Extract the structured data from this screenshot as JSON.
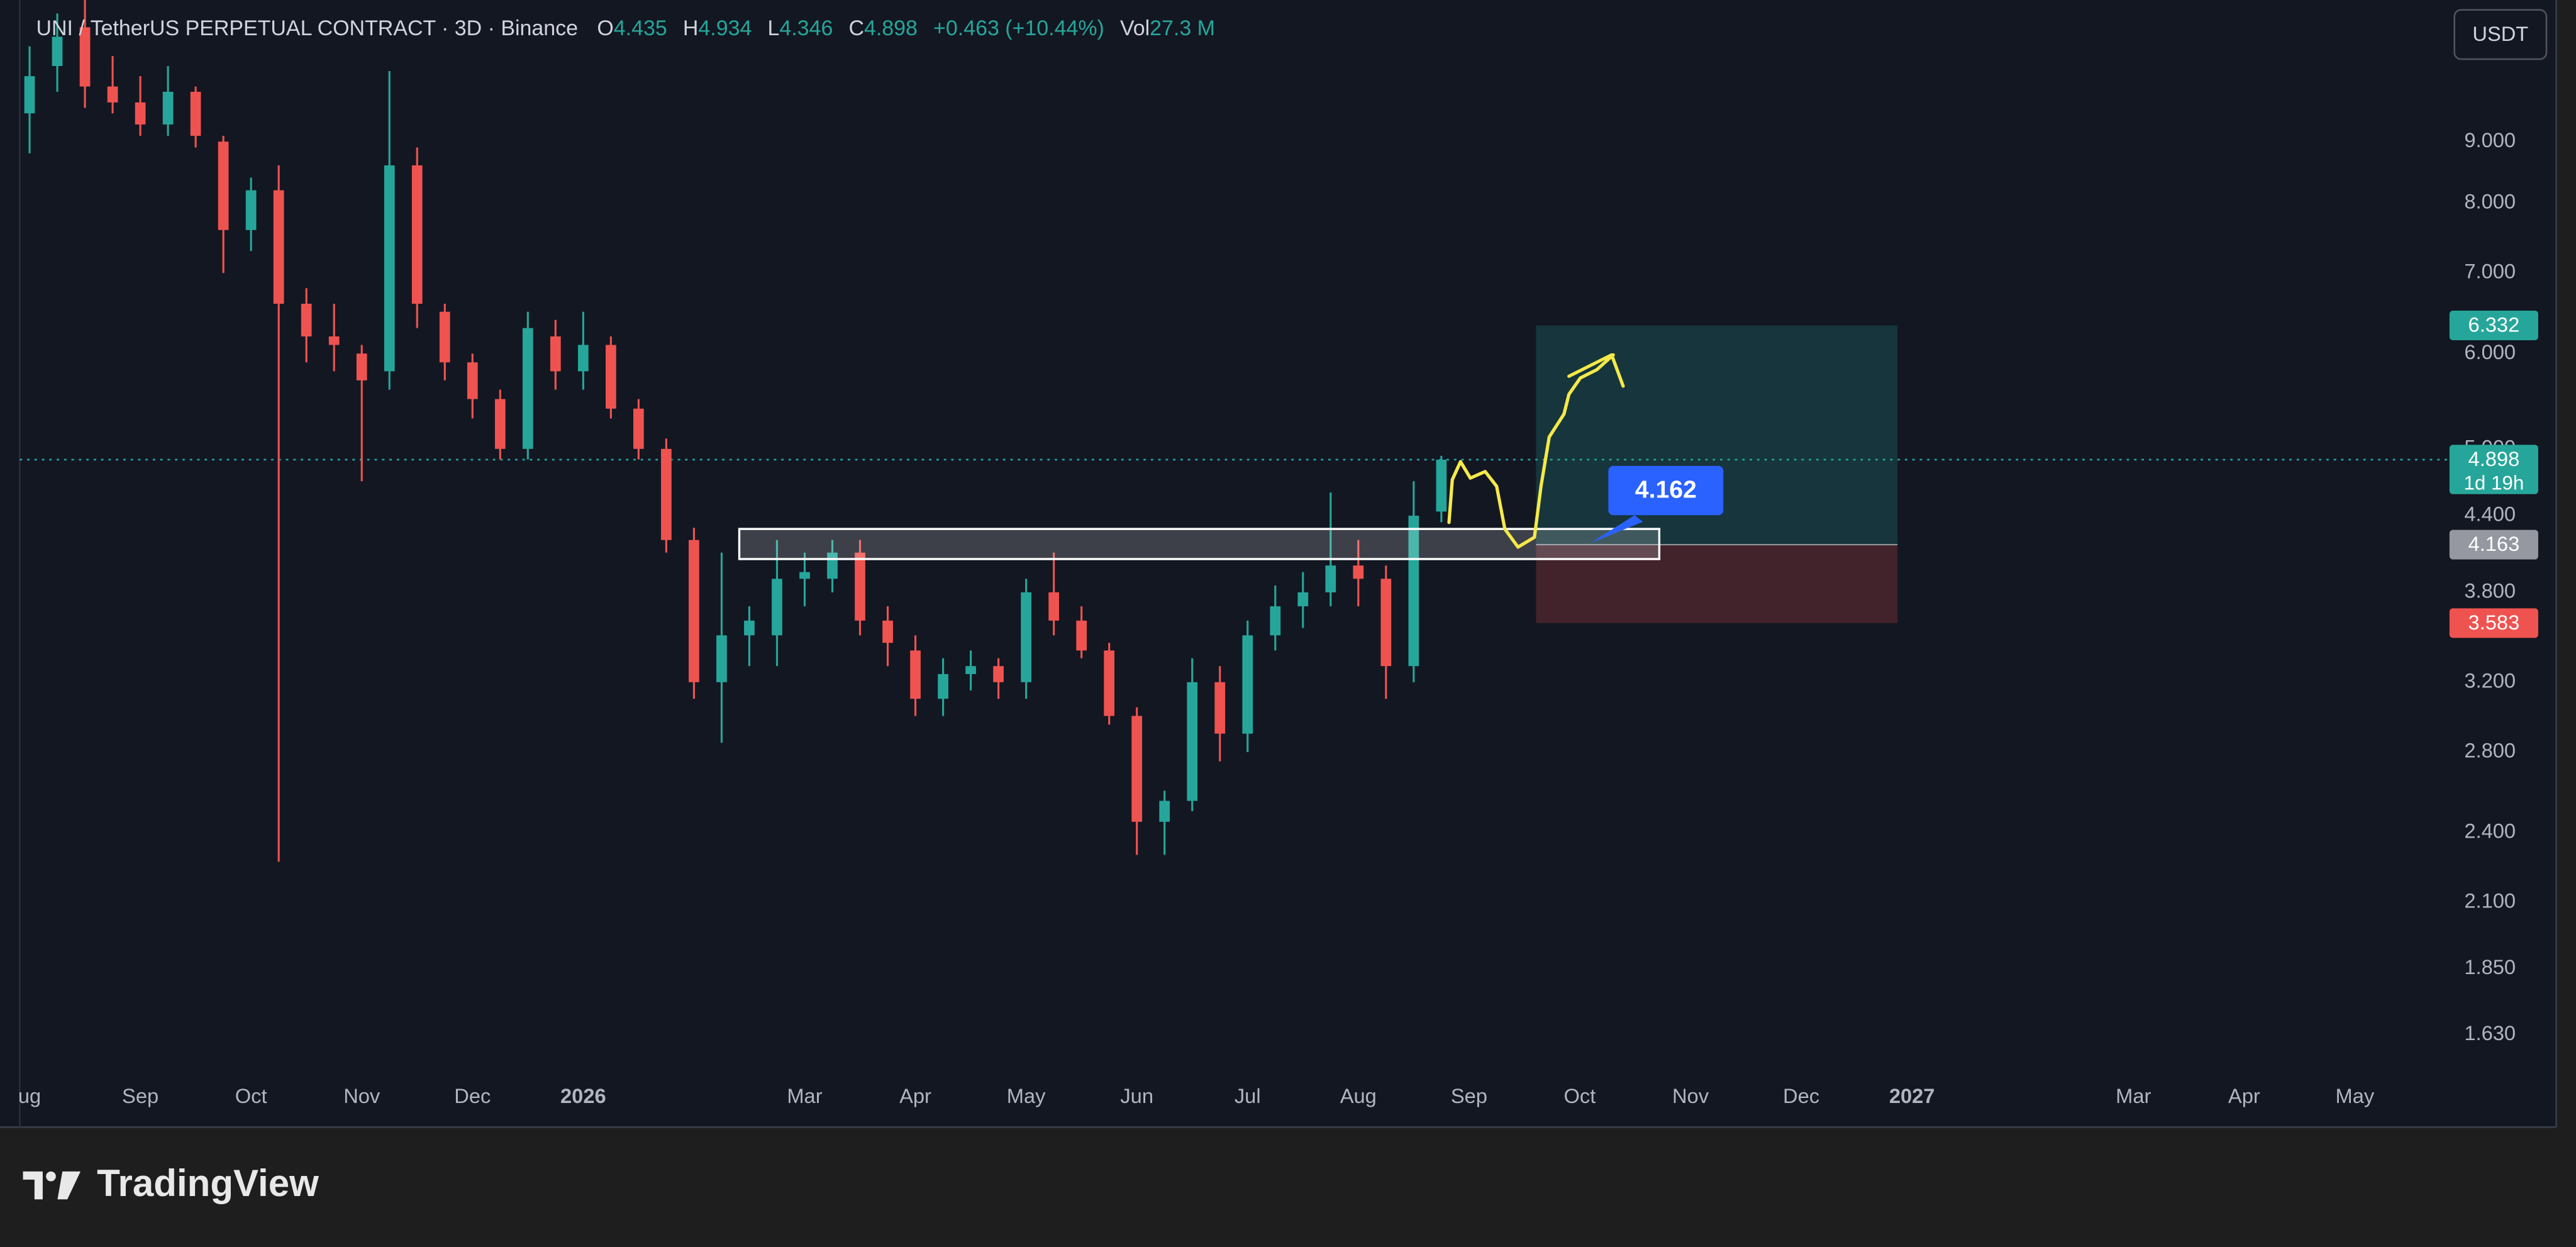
{
  "chart_data": {
    "type": "candlestick",
    "title": "UNI / TetherUS PERPETUAL CONTRACT · 3D · Binance",
    "ohlc_labels": [
      "O",
      "H",
      "L",
      "C"
    ],
    "change": "+0.463 (+10.44%)",
    "volume_label": "Vol",
    "volume": "27.3 M",
    "currency": "USDT",
    "log_scale": true,
    "up_color": "#26a69a",
    "down_color": "#ef5350",
    "ylim": [
      1.53,
      11.8
    ],
    "yticks": [
      {
        "value": 9,
        "label": "9.000"
      },
      {
        "value": 8,
        "label": "8.000"
      },
      {
        "value": 7,
        "label": "7.000"
      },
      {
        "value": 6,
        "label": "6.000"
      },
      {
        "value": 5,
        "label": "5.000"
      },
      {
        "value": 4.4,
        "label": "4.400"
      },
      {
        "value": 3.8,
        "label": "3.800"
      },
      {
        "value": 3.2,
        "label": "3.200"
      },
      {
        "value": 2.8,
        "label": "2.800"
      },
      {
        "value": 2.4,
        "label": "2.400"
      },
      {
        "value": 2.1,
        "label": "2.100"
      },
      {
        "value": 1.85,
        "label": "1.850"
      },
      {
        "value": 1.63,
        "label": "1.630"
      }
    ],
    "categories": [
      "ug",
      null,
      null,
      null,
      "Sep",
      null,
      null,
      null,
      "Oct",
      null,
      null,
      null,
      "Nov",
      null,
      null,
      null,
      "Dec",
      null,
      null,
      null,
      "2026",
      null,
      null,
      null,
      null,
      null,
      null,
      null,
      "Mar",
      null,
      null,
      null,
      "Apr",
      null,
      null,
      null,
      "May",
      null,
      null,
      null,
      "Jun",
      null,
      null,
      null,
      "Jul",
      null,
      null,
      null,
      "Aug",
      null,
      null,
      null,
      "Sep",
      null,
      null,
      null,
      "Oct",
      null,
      null,
      null,
      "Nov",
      null,
      null,
      null,
      "Dec",
      null,
      null,
      null,
      "2027",
      null,
      null,
      null,
      null,
      null,
      null,
      null,
      "Mar",
      null,
      null,
      null,
      "Apr",
      null,
      null,
      null,
      "May",
      null,
      null,
      null,
      null
    ],
    "open": [
      9.5,
      10.4,
      11.2,
      10.0,
      9.7,
      9.3,
      9.9,
      9.0,
      7.6,
      8.2,
      6.6,
      6.2,
      6.0,
      5.8,
      8.6,
      6.5,
      5.9,
      5.5,
      5.0,
      6.2,
      5.8,
      6.1,
      5.4,
      5.0,
      4.2,
      3.2,
      3.5,
      3.5,
      3.9,
      3.9,
      4.1,
      3.6,
      3.4,
      3.1,
      3.25,
      3.3,
      3.2,
      3.8,
      3.6,
      3.4,
      3.0,
      2.45,
      2.55,
      3.2,
      2.9,
      3.5,
      3.7,
      3.8,
      4.0,
      3.9,
      3.3,
      4.435,
      null,
      null,
      null,
      null,
      null,
      null,
      null,
      null,
      null,
      null,
      null,
      null,
      null,
      null,
      null,
      null,
      null,
      null,
      null,
      null,
      null,
      null,
      null,
      null,
      null,
      null,
      null,
      null,
      null,
      null,
      null,
      null,
      null,
      null,
      null,
      null,
      null
    ],
    "high": [
      10.8,
      11.5,
      11.8,
      10.6,
      10.2,
      10.4,
      10.0,
      9.1,
      8.4,
      8.6,
      6.8,
      6.6,
      6.1,
      10.3,
      8.9,
      6.6,
      6.0,
      5.6,
      6.5,
      6.4,
      6.5,
      6.2,
      5.5,
      5.1,
      4.3,
      4.1,
      3.7,
      4.2,
      4.1,
      4.2,
      4.2,
      3.7,
      3.5,
      3.35,
      3.4,
      3.35,
      3.9,
      4.1,
      3.7,
      3.45,
      3.05,
      2.6,
      3.35,
      3.3,
      3.6,
      3.85,
      3.95,
      4.6,
      4.2,
      4.0,
      4.7,
      4.934,
      null,
      null,
      null,
      null,
      null,
      null,
      null,
      null,
      null,
      null,
      null,
      null,
      null,
      null,
      null,
      null,
      null,
      null,
      null,
      null,
      null,
      null,
      null,
      null,
      null,
      null,
      null,
      null,
      null,
      null,
      null,
      null,
      null,
      null,
      null,
      null,
      null
    ],
    "low": [
      8.8,
      9.9,
      9.6,
      9.5,
      9.1,
      9.1,
      8.9,
      7.0,
      7.3,
      2.27,
      5.9,
      5.8,
      4.7,
      5.6,
      6.3,
      5.7,
      5.3,
      4.9,
      4.9,
      5.6,
      5.6,
      5.3,
      4.9,
      4.1,
      3.1,
      2.85,
      3.3,
      3.3,
      3.7,
      3.8,
      3.5,
      3.3,
      3.0,
      3.0,
      3.15,
      3.1,
      3.1,
      3.5,
      3.35,
      2.95,
      2.3,
      2.3,
      2.5,
      2.75,
      2.8,
      3.4,
      3.55,
      3.7,
      3.7,
      3.1,
      3.2,
      4.346,
      null,
      null,
      null,
      null,
      null,
      null,
      null,
      null,
      null,
      null,
      null,
      null,
      null,
      null,
      null,
      null,
      null,
      null,
      null,
      null,
      null,
      null,
      null,
      null,
      null,
      null,
      null,
      null,
      null,
      null,
      null,
      null,
      null,
      null,
      null,
      null,
      null
    ],
    "close": [
      10.2,
      11.0,
      10.0,
      9.7,
      9.3,
      9.9,
      9.1,
      7.6,
      8.2,
      6.6,
      6.2,
      6.1,
      5.7,
      8.6,
      6.6,
      5.9,
      5.5,
      5.0,
      6.3,
      5.8,
      6.1,
      5.4,
      5.0,
      4.2,
      3.2,
      3.5,
      3.6,
      3.9,
      3.95,
      4.1,
      3.6,
      3.45,
      3.1,
      3.25,
      3.3,
      3.2,
      3.8,
      3.6,
      3.4,
      3.0,
      2.45,
      2.55,
      3.2,
      2.9,
      3.5,
      3.7,
      3.8,
      4.0,
      3.9,
      3.3,
      4.4,
      4.898,
      null,
      null,
      null,
      null,
      null,
      null,
      null,
      null,
      null,
      null,
      null,
      null,
      null,
      null,
      null,
      null,
      null,
      null,
      null,
      null,
      null,
      null,
      null,
      null,
      null,
      null,
      null,
      null,
      null,
      null,
      null,
      null,
      null,
      null,
      null,
      null,
      null
    ],
    "last_price": 4.898,
    "countdown": "1d 19h",
    "zone": [
      4.05,
      4.29
    ],
    "position": {
      "target": 6.332,
      "entry": 4.163,
      "stop": 3.583
    },
    "callout": 4.162
  },
  "footer": {
    "brand": "TradingView"
  }
}
